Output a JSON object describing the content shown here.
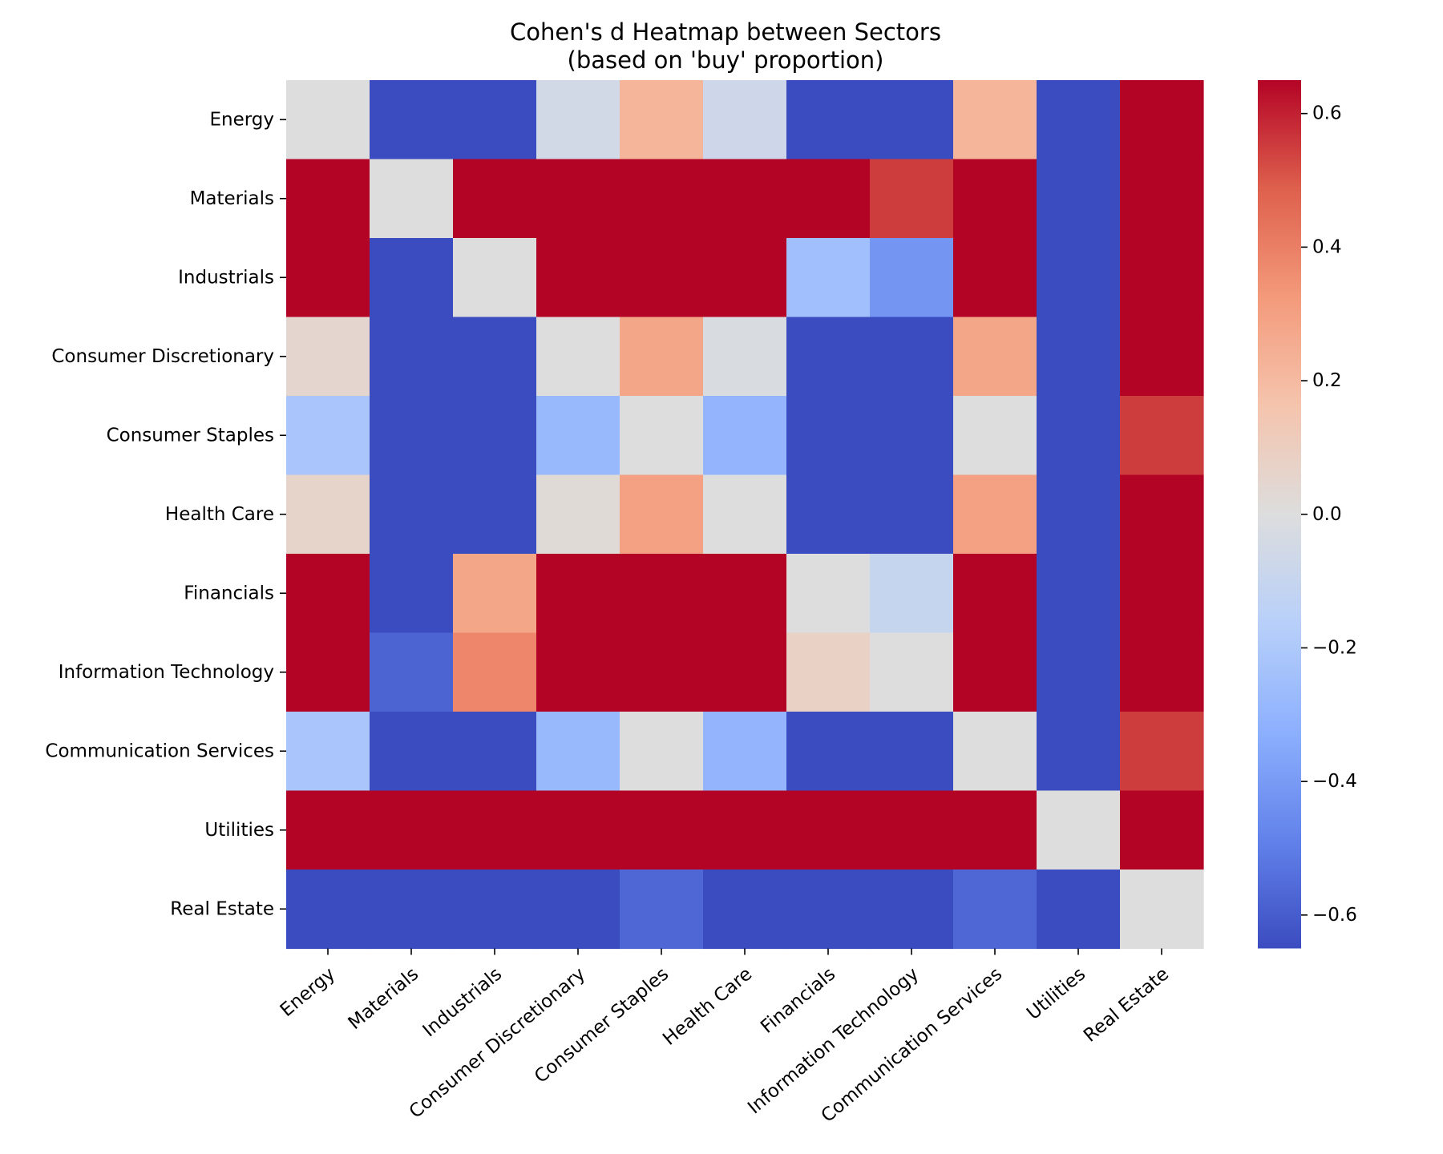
{
  "chart_data": {
    "type": "heatmap",
    "title": "Cohen's d Heatmap between Sectors",
    "subtitle": "(based on 'buy' proportion)",
    "xlabel": "",
    "ylabel": "",
    "rows": [
      "Energy",
      "Materials",
      "Industrials",
      "Consumer Discretionary",
      "Consumer Staples",
      "Health Care",
      "Financials",
      "Information Technology",
      "Communication Services",
      "Utilities",
      "Real Estate"
    ],
    "columns": [
      "Energy",
      "Materials",
      "Industrials",
      "Consumer Discretionary",
      "Consumer Staples",
      "Health Care",
      "Financials",
      "Information Technology",
      "Communication Services",
      "Utilities",
      "Real Estate"
    ],
    "values": [
      [
        0.0,
        -0.65,
        -0.65,
        -0.05,
        0.22,
        -0.07,
        -0.65,
        -0.65,
        0.22,
        -0.65,
        0.65
      ],
      [
        0.65,
        0.0,
        0.65,
        0.65,
        0.65,
        0.65,
        0.65,
        0.55,
        0.65,
        -0.65,
        0.65
      ],
      [
        0.65,
        -0.65,
        0.0,
        0.65,
        0.65,
        0.65,
        -0.25,
        -0.42,
        0.65,
        -0.65,
        0.65
      ],
      [
        0.05,
        -0.65,
        -0.65,
        0.0,
        0.28,
        -0.02,
        -0.65,
        -0.65,
        0.28,
        -0.65,
        0.65
      ],
      [
        -0.22,
        -0.65,
        -0.65,
        -0.28,
        0.0,
        -0.3,
        -0.65,
        -0.65,
        0.0,
        -0.65,
        0.55
      ],
      [
        0.06,
        -0.65,
        -0.65,
        0.02,
        0.3,
        0.0,
        -0.65,
        -0.65,
        0.3,
        -0.65,
        0.65
      ],
      [
        0.65,
        -0.65,
        0.28,
        0.65,
        0.65,
        0.65,
        0.0,
        -0.1,
        0.65,
        -0.65,
        0.65
      ],
      [
        0.65,
        -0.58,
        0.38,
        0.65,
        0.65,
        0.65,
        0.08,
        0.0,
        0.65,
        -0.65,
        0.65
      ],
      [
        -0.22,
        -0.65,
        -0.65,
        -0.28,
        0.0,
        -0.3,
        -0.65,
        -0.65,
        0.0,
        -0.65,
        0.55
      ],
      [
        0.65,
        0.65,
        0.65,
        0.65,
        0.65,
        0.65,
        0.65,
        0.65,
        0.65,
        0.0,
        0.65
      ],
      [
        -0.65,
        -0.65,
        -0.65,
        -0.65,
        -0.57,
        -0.65,
        -0.65,
        -0.65,
        -0.57,
        -0.65,
        0.0
      ]
    ],
    "colormap": "coolwarm",
    "vmin": -0.65,
    "vmax": 0.65,
    "colorbar_ticks": [
      0.6,
      0.4,
      0.2,
      0.0,
      -0.2,
      -0.4,
      -0.6
    ],
    "colorbar_tick_labels": [
      "0.6",
      "0.4",
      "0.2",
      "0.0",
      "−0.2",
      "−0.4",
      "−0.6"
    ]
  }
}
